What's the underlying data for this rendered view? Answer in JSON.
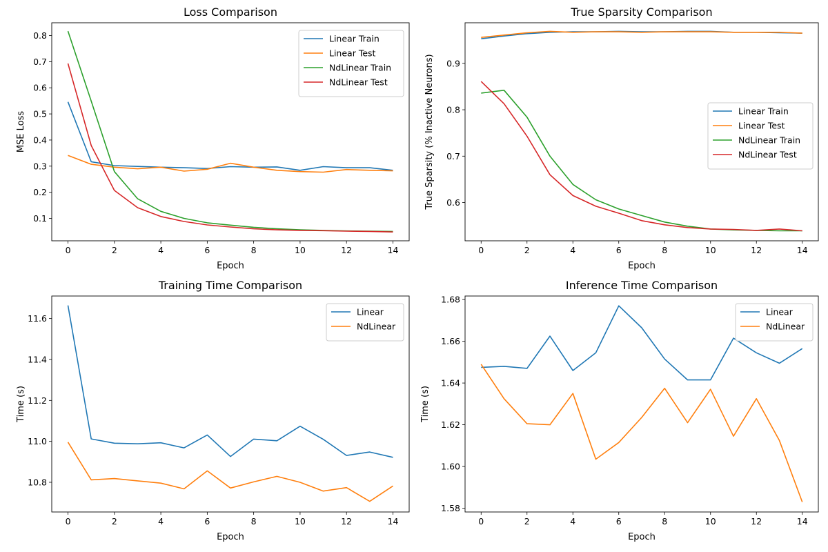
{
  "chart_data": [
    {
      "type": "line",
      "title": "Loss Comparison",
      "xlabel": "Epoch",
      "ylabel": "MSE Loss",
      "xlim": [
        -0.7,
        14.7
      ],
      "ylim": [
        0.0141,
        0.849
      ],
      "xticks": [
        0,
        2,
        4,
        6,
        8,
        10,
        12,
        14
      ],
      "yticks": [
        0.1,
        0.2,
        0.3,
        0.4,
        0.5,
        0.6,
        0.7,
        0.8
      ],
      "ytick_decimals": 1,
      "legend": "top-right",
      "x": [
        0,
        1,
        2,
        3,
        4,
        5,
        6,
        7,
        8,
        9,
        10,
        11,
        12,
        13,
        14
      ],
      "series": [
        {
          "name": "Linear Train",
          "color": "#1f77b4",
          "values": [
            0.546,
            0.317,
            0.302,
            0.299,
            0.296,
            0.294,
            0.291,
            0.298,
            0.296,
            0.297,
            0.284,
            0.298,
            0.294,
            0.294,
            0.284
          ]
        },
        {
          "name": "Linear Test",
          "color": "#ff7f0e",
          "values": [
            0.341,
            0.307,
            0.296,
            0.29,
            0.296,
            0.281,
            0.288,
            0.311,
            0.296,
            0.284,
            0.279,
            0.277,
            0.287,
            0.284,
            0.282
          ]
        },
        {
          "name": "NdLinear Train",
          "color": "#2ca02c",
          "values": [
            0.817,
            0.549,
            0.279,
            0.175,
            0.127,
            0.1,
            0.083,
            0.074,
            0.066,
            0.06,
            0.056,
            0.054,
            0.052,
            0.051,
            0.05
          ]
        },
        {
          "name": "NdLinear Test",
          "color": "#d62728",
          "values": [
            0.693,
            0.379,
            0.207,
            0.141,
            0.107,
            0.088,
            0.075,
            0.067,
            0.06,
            0.056,
            0.054,
            0.053,
            0.051,
            0.05,
            0.048
          ]
        }
      ]
    },
    {
      "type": "line",
      "title": "True Sparsity Comparison",
      "xlabel": "Epoch",
      "ylabel": "True Sparsity (% Inactive Neurons)",
      "xlim": [
        -0.7,
        14.7
      ],
      "ylim": [
        0.5175,
        0.9875
      ],
      "xticks": [
        0,
        2,
        4,
        6,
        8,
        10,
        12,
        14
      ],
      "yticks": [
        0.6,
        0.7,
        0.8,
        0.9
      ],
      "ytick_decimals": 1,
      "legend": "center-right",
      "x": [
        0,
        1,
        2,
        3,
        4,
        5,
        6,
        7,
        8,
        9,
        10,
        11,
        12,
        13,
        14
      ],
      "series": [
        {
          "name": "Linear Train",
          "color": "#1f77b4",
          "values": [
            0.953,
            0.959,
            0.964,
            0.967,
            0.968,
            0.968,
            0.969,
            0.968,
            0.968,
            0.969,
            0.969,
            0.967,
            0.967,
            0.966,
            0.965
          ]
        },
        {
          "name": "Linear Test",
          "color": "#ff7f0e",
          "values": [
            0.956,
            0.961,
            0.966,
            0.969,
            0.967,
            0.968,
            0.968,
            0.967,
            0.968,
            0.968,
            0.968,
            0.967,
            0.967,
            0.967,
            0.965
          ]
        },
        {
          "name": "NdLinear Train",
          "color": "#2ca02c",
          "values": [
            0.836,
            0.842,
            0.784,
            0.7,
            0.639,
            0.606,
            0.586,
            0.572,
            0.558,
            0.549,
            0.543,
            0.541,
            0.54,
            0.539,
            0.539
          ]
        },
        {
          "name": "NdLinear Test",
          "color": "#d62728",
          "values": [
            0.861,
            0.813,
            0.743,
            0.66,
            0.615,
            0.592,
            0.577,
            0.561,
            0.552,
            0.546,
            0.543,
            0.542,
            0.54,
            0.543,
            0.539
          ]
        }
      ]
    },
    {
      "type": "line",
      "title": "Training Time Comparison",
      "xlabel": "Epoch",
      "ylabel": "Time (s)",
      "xlim": [
        -0.7,
        14.7
      ],
      "ylim": [
        10.655,
        11.71
      ],
      "xticks": [
        0,
        2,
        4,
        6,
        8,
        10,
        12,
        14
      ],
      "yticks": [
        10.8,
        11.0,
        11.2,
        11.4,
        11.6
      ],
      "ytick_decimals": 1,
      "legend": "top-right",
      "x": [
        0,
        1,
        2,
        3,
        4,
        5,
        6,
        7,
        8,
        9,
        10,
        11,
        12,
        13,
        14
      ],
      "series": [
        {
          "name": "Linear",
          "color": "#1f77b4",
          "values": [
            11.664,
            11.012,
            10.991,
            10.988,
            10.993,
            10.968,
            11.031,
            10.926,
            11.011,
            11.003,
            11.074,
            11.01,
            10.931,
            10.948,
            10.922
          ]
        },
        {
          "name": "NdLinear",
          "color": "#ff7f0e",
          "values": [
            10.996,
            10.812,
            10.818,
            10.807,
            10.796,
            10.768,
            10.856,
            10.772,
            10.802,
            10.829,
            10.8,
            10.757,
            10.774,
            10.707,
            10.782
          ]
        }
      ]
    },
    {
      "type": "line",
      "title": "Inference Time Comparison",
      "xlabel": "Epoch",
      "ylabel": "Time (s)",
      "xlim": [
        -0.7,
        14.7
      ],
      "ylim": [
        1.5782,
        1.6817
      ],
      "xticks": [
        0,
        2,
        4,
        6,
        8,
        10,
        12,
        14
      ],
      "yticks": [
        1.58,
        1.6,
        1.62,
        1.64,
        1.66,
        1.68
      ],
      "ytick_decimals": 2,
      "legend": "top-right",
      "x": [
        0,
        1,
        2,
        3,
        4,
        5,
        6,
        7,
        8,
        9,
        10,
        11,
        12,
        13,
        14
      ],
      "series": [
        {
          "name": "Linear",
          "color": "#1f77b4",
          "values": [
            1.6475,
            1.648,
            1.647,
            1.6625,
            1.646,
            1.6545,
            1.677,
            1.6665,
            1.6515,
            1.6415,
            1.6415,
            1.6615,
            1.6545,
            1.6495,
            1.6565
          ]
        },
        {
          "name": "NdLinear",
          "color": "#ff7f0e",
          "values": [
            1.649,
            1.6325,
            1.6205,
            1.62,
            1.635,
            1.6035,
            1.6115,
            1.6235,
            1.6375,
            1.621,
            1.637,
            1.6145,
            1.6325,
            1.6125,
            1.583
          ]
        }
      ]
    }
  ]
}
